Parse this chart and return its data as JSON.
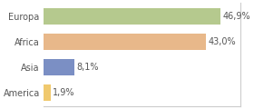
{
  "categories": [
    "Europa",
    "Africa",
    "Asia",
    "America"
  ],
  "values": [
    46.9,
    43.0,
    8.1,
    1.9
  ],
  "labels": [
    "46,9%",
    "43,0%",
    "8,1%",
    "1,9%"
  ],
  "bar_colors": [
    "#b5c98e",
    "#e8b88a",
    "#7b8fc4",
    "#f0c96e"
  ],
  "background_color": "#ffffff",
  "xlim": [
    0,
    52
  ],
  "bar_height": 0.65,
  "label_fontsize": 7.0,
  "category_fontsize": 7.0,
  "label_color": "#555555",
  "spine_color": "#cccccc",
  "figsize": [
    2.8,
    1.2
  ],
  "dpi": 100
}
